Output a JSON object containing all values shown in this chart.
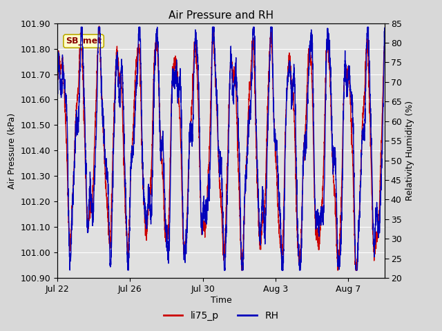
{
  "title": "Air Pressure and RH",
  "xlabel": "Time",
  "ylabel_left": "Air Pressure (kPa)",
  "ylabel_right": "Relativity Humidity (%)",
  "ylim_left": [
    100.9,
    101.9
  ],
  "ylim_right": [
    20,
    85
  ],
  "yticks_left": [
    100.9,
    101.0,
    101.1,
    101.2,
    101.3,
    101.4,
    101.5,
    101.6,
    101.7,
    101.8,
    101.9
  ],
  "yticks_right": [
    20,
    25,
    30,
    35,
    40,
    45,
    50,
    55,
    60,
    65,
    70,
    75,
    80,
    85
  ],
  "xtick_labels": [
    "Jul 22",
    "Jul 26",
    "Jul 30",
    "Aug 3",
    "Aug 7"
  ],
  "xtick_positions": [
    0,
    4,
    8,
    12,
    16
  ],
  "xlim": [
    0,
    18
  ],
  "legend_labels": [
    "li75_p",
    "RH"
  ],
  "line_color_pressure": "#cc0000",
  "line_color_rh": "#0000bb",
  "fig_bg_color": "#d8d8d8",
  "plot_bg_color": "#e0e0e0",
  "annotation_text": "SB_met",
  "annotation_fg": "#880000",
  "annotation_bg": "#ffffcc",
  "annotation_border": "#bbaa00",
  "grid_color": "#ffffff",
  "title_fontsize": 11,
  "label_fontsize": 9,
  "tick_fontsize": 9,
  "legend_fontsize": 10,
  "linewidth": 1.0
}
